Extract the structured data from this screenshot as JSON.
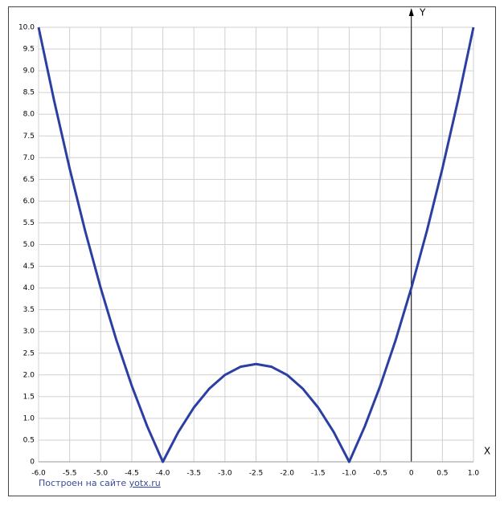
{
  "chart_data": {
    "type": "line",
    "x": [
      -6,
      -5.75,
      -5.5,
      -5.25,
      -5,
      -4.75,
      -4.5,
      -4.25,
      -4,
      -3.75,
      -3.5,
      -3.25,
      -3,
      -2.75,
      -2.5,
      -2.25,
      -2,
      -1.75,
      -1.5,
      -1.25,
      -1,
      -0.75,
      -0.5,
      -0.25,
      0,
      0.25,
      0.5,
      0.75,
      1
    ],
    "series": [
      {
        "color": "#2b3fa3",
        "values": [
          10,
          8.3125,
          6.75,
          5.3125,
          4,
          2.8125,
          1.75,
          0.8125,
          0,
          0.6875,
          1.25,
          1.6875,
          2,
          2.1875,
          2.25,
          2.1875,
          2,
          1.6875,
          1.25,
          0.6875,
          0,
          0.8125,
          1.75,
          2.8125,
          4,
          5.3125,
          6.75,
          8.3125,
          10
        ]
      }
    ],
    "xlim": [
      -6,
      1
    ],
    "ylim": [
      0,
      10
    ],
    "xticks": [
      {
        "value": -6,
        "label": "-6.0"
      },
      -5.5,
      {
        "value": -5,
        "label": "-5.0"
      },
      -4.5,
      {
        "value": -4,
        "label": "-4.0"
      },
      -3.5,
      {
        "value": -3,
        "label": "-3.0"
      },
      -2.5,
      {
        "value": -2,
        "label": "-2.0"
      },
      -1.5,
      {
        "value": -1,
        "label": "-1.0"
      },
      -0.5,
      0,
      0.5,
      {
        "value": 1,
        "label": "1.0"
      }
    ],
    "yticks": [
      0,
      0.5,
      {
        "value": 1,
        "label": "1.0"
      },
      1.5,
      {
        "value": 2,
        "label": "2.0"
      },
      2.5,
      {
        "value": 3,
        "label": "3.0"
      },
      3.5,
      {
        "value": 4,
        "label": "4.0"
      },
      4.5,
      {
        "value": 5,
        "label": "5.0"
      },
      5.5,
      {
        "value": 6,
        "label": "6.0"
      },
      6.5,
      {
        "value": 7,
        "label": "7.0"
      },
      7.5,
      {
        "value": 8,
        "label": "8.0"
      },
      8.5,
      {
        "value": 9,
        "label": "9.0"
      },
      9.5,
      {
        "value": 10,
        "label": "10.0"
      }
    ],
    "grid": true,
    "xlabel": "X",
    "ylabel": "Y",
    "footer": {
      "text": "Построен на сайте",
      "link": "yotx.ru"
    }
  }
}
